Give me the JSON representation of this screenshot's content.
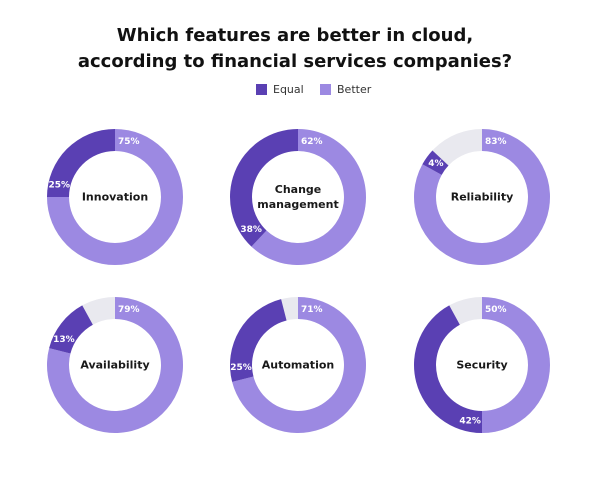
{
  "chart_data": {
    "type": "donut",
    "title": "Which features are better in cloud,",
    "subtitle": "according to financial services companies?",
    "series": [
      {
        "name": "Equal",
        "color": "#5a40b3"
      },
      {
        "name": "Better",
        "color": "#9c89e2"
      }
    ],
    "panels": [
      {
        "label": "Innovation",
        "values": [
          25,
          75
        ],
        "value_labels": [
          "25%",
          "75%"
        ]
      },
      {
        "label": "Change management",
        "values": [
          38,
          62
        ],
        "value_labels": [
          "38%",
          "62%"
        ]
      },
      {
        "label": "Reliability",
        "values": [
          4,
          83
        ],
        "value_labels": [
          "4%",
          "83%"
        ]
      },
      {
        "label": "Availability",
        "values": [
          13,
          79
        ],
        "value_labels": [
          "13%",
          "79%"
        ]
      },
      {
        "label": "Automation",
        "values": [
          25,
          71
        ],
        "value_labels": [
          "25%",
          "71%"
        ]
      },
      {
        "label": "Security",
        "values": [
          42,
          50
        ],
        "value_labels": [
          "42%",
          "50%"
        ]
      }
    ]
  }
}
